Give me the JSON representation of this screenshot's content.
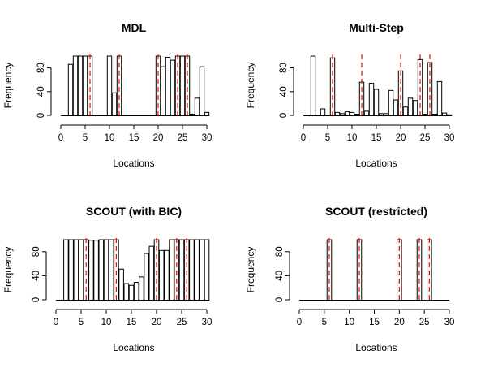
{
  "chart_data": [
    {
      "type": "bar",
      "title": "MDL",
      "xlabel": "Locations",
      "ylabel": "Frequency",
      "x": [
        2,
        3,
        4,
        5,
        6,
        10,
        11,
        12,
        20,
        21,
        22,
        23,
        24,
        25,
        26,
        27,
        28,
        29,
        30
      ],
      "values": [
        86,
        100,
        100,
        100,
        100,
        100,
        38,
        100,
        100,
        82,
        98,
        93,
        100,
        100,
        100,
        2,
        29,
        82,
        5
      ],
      "xlim": [
        0,
        30
      ],
      "ylim": [
        0,
        100
      ],
      "xticks": [
        0,
        5,
        10,
        15,
        20,
        25,
        30
      ],
      "yticks": [
        0,
        40,
        80
      ],
      "reference_lines": [
        6,
        12,
        20,
        24,
        26
      ],
      "reference_line_color": "#ff0000",
      "bar_fill": "#ffffff",
      "bar_stroke": "#000000"
    },
    {
      "type": "bar",
      "title": "Multi-Step",
      "xlabel": "Locations",
      "ylabel": "Frequency",
      "x": [
        2,
        4,
        6,
        7,
        8,
        9,
        10,
        11,
        12,
        13,
        14,
        15,
        16,
        17,
        18,
        19,
        20,
        21,
        22,
        23,
        24,
        25,
        26,
        27,
        28,
        29,
        30
      ],
      "values": [
        100,
        11,
        97,
        5,
        3,
        6,
        5,
        2,
        56,
        7,
        54,
        44,
        3,
        3,
        42,
        26,
        75,
        14,
        29,
        25,
        94,
        2,
        89,
        2,
        57,
        4,
        1
      ],
      "xlim": [
        0,
        30
      ],
      "ylim": [
        0,
        100
      ],
      "xticks": [
        0,
        5,
        10,
        15,
        20,
        25,
        30
      ],
      "yticks": [
        0,
        40,
        80
      ],
      "reference_lines": [
        6,
        12,
        20,
        24,
        26
      ],
      "reference_line_color": "#ff0000",
      "bar_fill": "#ffffff",
      "bar_stroke": "#000000"
    },
    {
      "type": "bar",
      "title": "SCOUT (with BIC)",
      "xlabel": "Locations",
      "ylabel": "Frequency",
      "x": [
        2,
        3,
        4,
        5,
        6,
        7,
        8,
        9,
        10,
        11,
        12,
        13,
        14,
        15,
        16,
        17,
        18,
        19,
        20,
        21,
        22,
        23,
        24,
        25,
        26,
        27,
        28,
        29,
        30
      ],
      "values": [
        100,
        100,
        100,
        100,
        100,
        99,
        99,
        100,
        100,
        100,
        100,
        51,
        27,
        24,
        29,
        38,
        77,
        89,
        100,
        82,
        82,
        100,
        100,
        100,
        100,
        100,
        100,
        100,
        100
      ],
      "xlim": [
        0,
        30
      ],
      "ylim": [
        0,
        100
      ],
      "xticks": [
        0,
        5,
        10,
        15,
        20,
        25,
        30
      ],
      "yticks": [
        0,
        40,
        80
      ],
      "reference_lines": [
        6,
        12,
        20,
        24,
        26
      ],
      "reference_line_color": "#ff0000",
      "bar_fill": "#ffffff",
      "bar_stroke": "#000000"
    },
    {
      "type": "bar",
      "title": "SCOUT (restricted)",
      "xlabel": "Locations",
      "ylabel": "Frequency",
      "x": [
        6,
        12,
        20,
        24,
        26
      ],
      "values": [
        100,
        100,
        100,
        100,
        100
      ],
      "xlim": [
        0,
        30
      ],
      "ylim": [
        0,
        100
      ],
      "xticks": [
        0,
        5,
        10,
        15,
        20,
        25,
        30
      ],
      "yticks": [
        0,
        40,
        80
      ],
      "reference_lines": [
        6,
        12,
        20,
        24,
        26
      ],
      "reference_line_color": "#ff0000",
      "bar_fill": "#ffffff",
      "bar_stroke": "#000000"
    }
  ]
}
